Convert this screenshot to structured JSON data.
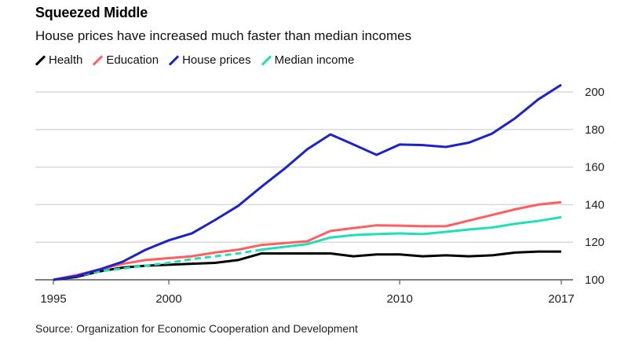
{
  "header": {
    "title": "Squeezed Middle",
    "subtitle": "House prices have increased much faster than median incomes"
  },
  "source": "Source: Organization for Economic Cooperation and Development",
  "chart_data": {
    "type": "line",
    "title": "Squeezed Middle",
    "subtitle": "House prices have increased much faster than median incomes",
    "xlabel": "",
    "ylabel": "",
    "x": [
      1995,
      1996,
      1997,
      1998,
      1999,
      2000,
      2001,
      2002,
      2003,
      2004,
      2005,
      2006,
      2007,
      2008,
      2009,
      2010,
      2011,
      2012,
      2013,
      2014,
      2015,
      2016,
      2017
    ],
    "xlim": [
      1995,
      2017
    ],
    "ylim": [
      100,
      205
    ],
    "x_ticks": [
      1995,
      2000,
      2010,
      2017
    ],
    "x_tick_labels": [
      "1995",
      "2000",
      "2010",
      "2017"
    ],
    "y_ticks": [
      100,
      120,
      140,
      160,
      180,
      200
    ],
    "y_tick_labels": [
      "100",
      "120",
      "140",
      "160",
      "180",
      "200"
    ],
    "y_axis_position": "right",
    "grid": "horizontal",
    "legend_position": "top-left",
    "series": [
      {
        "name": "Health",
        "color": "#000000",
        "style": "solid",
        "values": [
          100,
          101.5,
          104.5,
          106.5,
          107.5,
          108,
          108.5,
          109,
          110.5,
          114,
          114,
          114,
          114,
          112.5,
          113.5,
          113.5,
          112.5,
          113,
          112.5,
          113,
          114.5,
          115,
          115
        ]
      },
      {
        "name": "Education",
        "color": "#ff5e5e",
        "style": "solid",
        "values": [
          100,
          102.5,
          105.5,
          108.5,
          110.5,
          111.5,
          112.5,
          114.5,
          116,
          118.5,
          119.5,
          120.5,
          126,
          127.5,
          129,
          128.8,
          128.5,
          128.5,
          131.5,
          134.5,
          137.5,
          140,
          141.3
        ]
      },
      {
        "name": "House prices",
        "color": "#1c22c9",
        "style": "solid",
        "values": [
          100,
          102,
          105.5,
          109.6,
          116,
          121,
          124.7,
          131.8,
          139.3,
          149.4,
          159,
          169.5,
          177.4,
          172,
          166.5,
          172,
          171.7,
          170.7,
          173,
          177.8,
          186,
          196,
          203.8
        ]
      },
      {
        "name": "Median income",
        "color": "#1ee0b4",
        "style": "dashed-until-2004-then-solid",
        "values": [
          100,
          102,
          104.5,
          106,
          107.5,
          109,
          111,
          112.5,
          114,
          116,
          117.5,
          119,
          122.5,
          123.8,
          124.3,
          124.7,
          124.3,
          125.5,
          126.8,
          127.8,
          129.8,
          131.3,
          133.3
        ]
      }
    ]
  }
}
